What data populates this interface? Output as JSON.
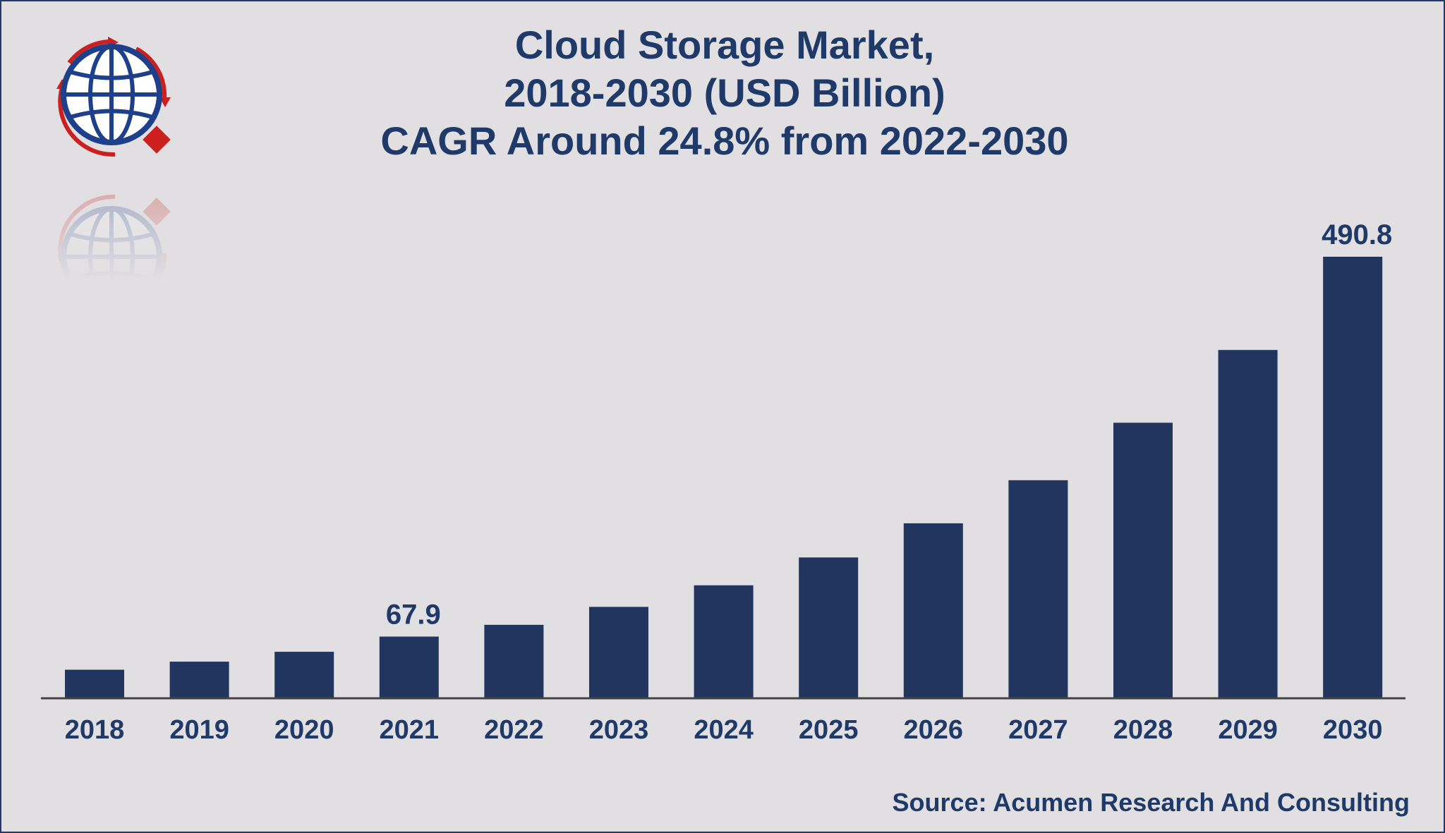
{
  "chart_data": {
    "type": "bar",
    "title": [
      "Cloud Storage Market,",
      "2018-2030 (USD Billion)",
      "CAGR Around 24.8% from 2022-2030"
    ],
    "xlabel": "",
    "ylabel": "",
    "categories": [
      "2018",
      "2019",
      "2020",
      "2021",
      "2022",
      "2023",
      "2024",
      "2025",
      "2026",
      "2027",
      "2028",
      "2029",
      "2030"
    ],
    "values": [
      31,
      40,
      51,
      67.9,
      81,
      101,
      125,
      156,
      194,
      242,
      306,
      387,
      490.8
    ],
    "data_labels": [
      {
        "category": "2021",
        "text": "67.9"
      },
      {
        "category": "2030",
        "text": "490.8"
      }
    ],
    "ylim": [
      0,
      500
    ],
    "grid": false,
    "legend": "none",
    "bar_color": "#21355f",
    "source": "Source: Acumen Research And Consulting"
  },
  "colors": {
    "background": "#e1dfe2",
    "text": "#1f3a68",
    "axis": "#444444",
    "logo_ring": "#1e3f8a",
    "logo_accent": "#cc1f1f"
  },
  "logo": {
    "icon": "globe-icon"
  }
}
